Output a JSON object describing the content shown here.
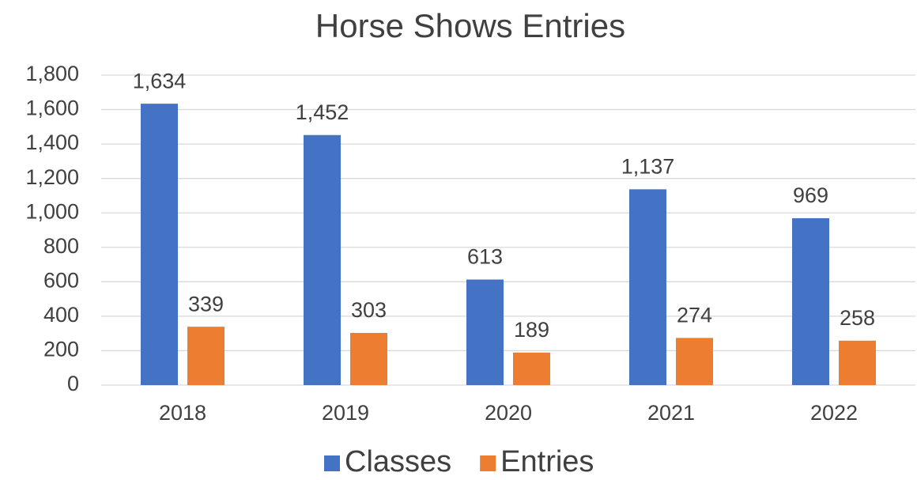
{
  "chart_data": {
    "type": "bar",
    "title": "Horse Shows Entries",
    "categories": [
      "2018",
      "2019",
      "2020",
      "2021",
      "2022"
    ],
    "series": [
      {
        "name": "Classes",
        "color": "#4472c4",
        "values": [
          1634,
          1452,
          613,
          1137,
          969
        ],
        "value_labels": [
          "1,634",
          "1,452",
          "613",
          "1,137",
          "969"
        ]
      },
      {
        "name": "Entries",
        "color": "#ed7d31",
        "values": [
          339,
          303,
          189,
          274,
          258
        ]
      }
    ],
    "ylim": [
      0,
      1800
    ],
    "yticks": [
      0,
      200,
      400,
      600,
      800,
      {
        "value": 1000,
        "label": "1,000"
      },
      {
        "value": 1200,
        "label": "1,200"
      },
      {
        "value": 1400,
        "label": "1,400"
      },
      {
        "value": 1600,
        "label": "1,600"
      },
      {
        "value": 1800,
        "label": "1,800"
      }
    ],
    "grid": true,
    "legend": "bottom"
  }
}
